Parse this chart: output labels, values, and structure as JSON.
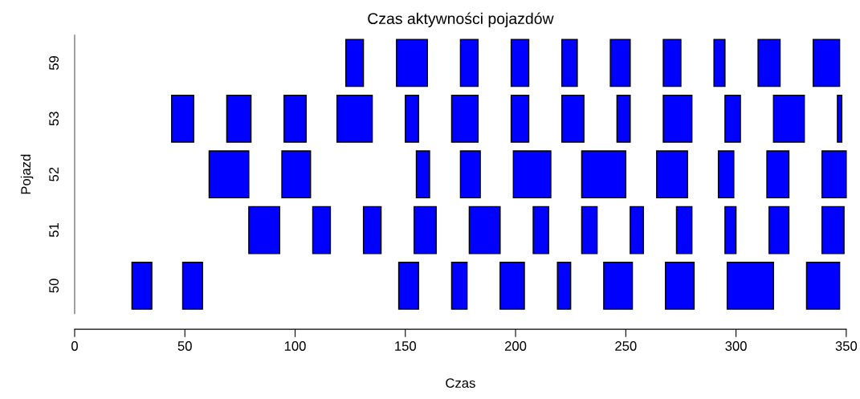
{
  "chart_data": {
    "type": "bar",
    "orientation": "horizontal",
    "title": "Czas aktywności pojazdów",
    "xlabel": "Czas",
    "ylabel": "Pojazd",
    "categories": [
      "59",
      "53",
      "52",
      "51",
      "50"
    ],
    "xlim": [
      0,
      350
    ],
    "xticks": [
      0,
      50,
      100,
      150,
      200,
      250,
      300,
      350
    ],
    "series": [
      {
        "color": "#0000ff",
        "base": [
          123,
          44,
          61,
          79,
          26
        ],
        "values": [
          8,
          10,
          18,
          14,
          9
        ]
      },
      {
        "color": "#0000ff",
        "base": [
          146,
          69,
          94,
          108,
          49
        ],
        "values": [
          14,
          11,
          13,
          8,
          9
        ]
      },
      {
        "color": "#0000ff",
        "base": [
          175,
          95,
          155,
          131,
          147
        ],
        "values": [
          8,
          10,
          6,
          8,
          9
        ]
      },
      {
        "color": "#0000ff",
        "base": [
          198,
          119,
          175,
          154,
          171
        ],
        "values": [
          8,
          16,
          9,
          10,
          7
        ]
      },
      {
        "color": "#0000ff",
        "base": [
          221,
          150,
          199,
          179,
          193
        ],
        "values": [
          7,
          6,
          17,
          14,
          11
        ]
      },
      {
        "color": "#0000ff",
        "base": [
          243,
          171,
          230,
          208,
          219
        ],
        "values": [
          9,
          12,
          20,
          7,
          6
        ]
      },
      {
        "color": "#0000ff",
        "base": [
          267,
          198,
          264,
          230,
          240
        ],
        "values": [
          8,
          8,
          14,
          7,
          13
        ]
      },
      {
        "color": "#0000ff",
        "base": [
          290,
          221,
          292,
          252,
          268
        ],
        "values": [
          5,
          10,
          7,
          6,
          13
        ]
      },
      {
        "color": "#0000ff",
        "base": [
          310,
          246,
          314,
          273,
          296
        ],
        "values": [
          10,
          6,
          10,
          7,
          21
        ]
      },
      {
        "color": "#0000ff",
        "base": [
          335,
          267,
          339,
          295,
          332
        ],
        "values": [
          12,
          13,
          11,
          5,
          15
        ]
      },
      {
        "color": "#0000ff",
        "base": [
          null,
          295,
          null,
          315,
          null
        ],
        "values": [
          null,
          7,
          null,
          9,
          null
        ]
      },
      {
        "color": "#0000ff",
        "base": [
          null,
          317,
          null,
          339,
          null
        ],
        "values": [
          null,
          14,
          null,
          10,
          null
        ]
      },
      {
        "color": "#0000ff",
        "base": [
          null,
          346,
          null,
          null,
          null
        ],
        "values": [
          null,
          2,
          null,
          null,
          null
        ]
      }
    ]
  }
}
